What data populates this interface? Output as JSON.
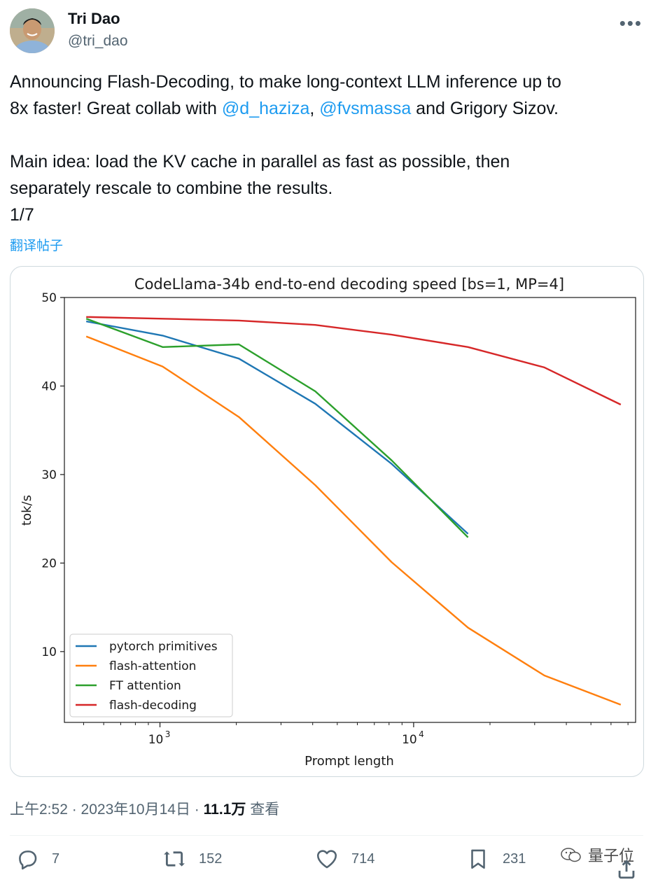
{
  "author": {
    "name": "Tri Dao",
    "handle": "@tri_dao"
  },
  "tweet": {
    "line1": "Announcing Flash-Decoding, to make long-context LLM inference up to",
    "line2_pre": "8x faster! Great collab with ",
    "mention1": "@d_haziza",
    "sep": ", ",
    "mention2": "@fvsmassa",
    "line2_post": " and Grigory Sizov.",
    "line3": "Main idea: load the KV cache in parallel as fast as possible, then",
    "line4": "separately rescale to combine the results.",
    "line5": "1/7"
  },
  "translate_label": "翻译帖子",
  "meta": {
    "time": "上午2:52 · 2023年10月14日 · ",
    "views": "11.1万",
    "views_label": " 查看"
  },
  "actions": {
    "replies": "7",
    "reposts": "152",
    "likes": "714",
    "bookmarks": "231"
  },
  "watermark": "量子位",
  "chart_data": {
    "type": "line",
    "title": "CodeLlama-34b end-to-end decoding speed [bs=1, MP=4]",
    "xlabel": "Prompt length",
    "ylabel": "tok/s",
    "xscale": "log",
    "xlim": [
      420,
      75000
    ],
    "ylim": [
      2,
      50
    ],
    "yticks": [
      10,
      20,
      30,
      40,
      50
    ],
    "xticks": [
      {
        "value": 1000,
        "base": "10",
        "exp": "3"
      },
      {
        "value": 10000,
        "base": "10",
        "exp": "4"
      }
    ],
    "legend_position": "lower-left",
    "series": [
      {
        "name": "pytorch primitives",
        "color": "#1f77b4",
        "x": [
          512,
          1024,
          2048,
          4096,
          8192,
          16384
        ],
        "y": [
          47.3,
          45.7,
          43.1,
          38.0,
          31.2,
          23.3
        ]
      },
      {
        "name": "flash-attention",
        "color": "#ff7f0e",
        "x": [
          512,
          1024,
          2048,
          4096,
          8192,
          16384,
          32768,
          65536
        ],
        "y": [
          45.6,
          42.2,
          36.5,
          28.8,
          20.1,
          12.7,
          7.3,
          4.0
        ]
      },
      {
        "name": "FT attention",
        "color": "#2ca02c",
        "x": [
          512,
          1024,
          2048,
          4096,
          8192,
          16384
        ],
        "y": [
          47.6,
          44.4,
          44.7,
          39.4,
          31.6,
          22.9
        ]
      },
      {
        "name": "flash-decoding",
        "color": "#d62728",
        "x": [
          512,
          1024,
          2048,
          4096,
          8192,
          16384,
          32768,
          65536
        ],
        "y": [
          47.8,
          47.6,
          47.4,
          46.9,
          45.8,
          44.4,
          42.1,
          37.9
        ]
      }
    ]
  }
}
